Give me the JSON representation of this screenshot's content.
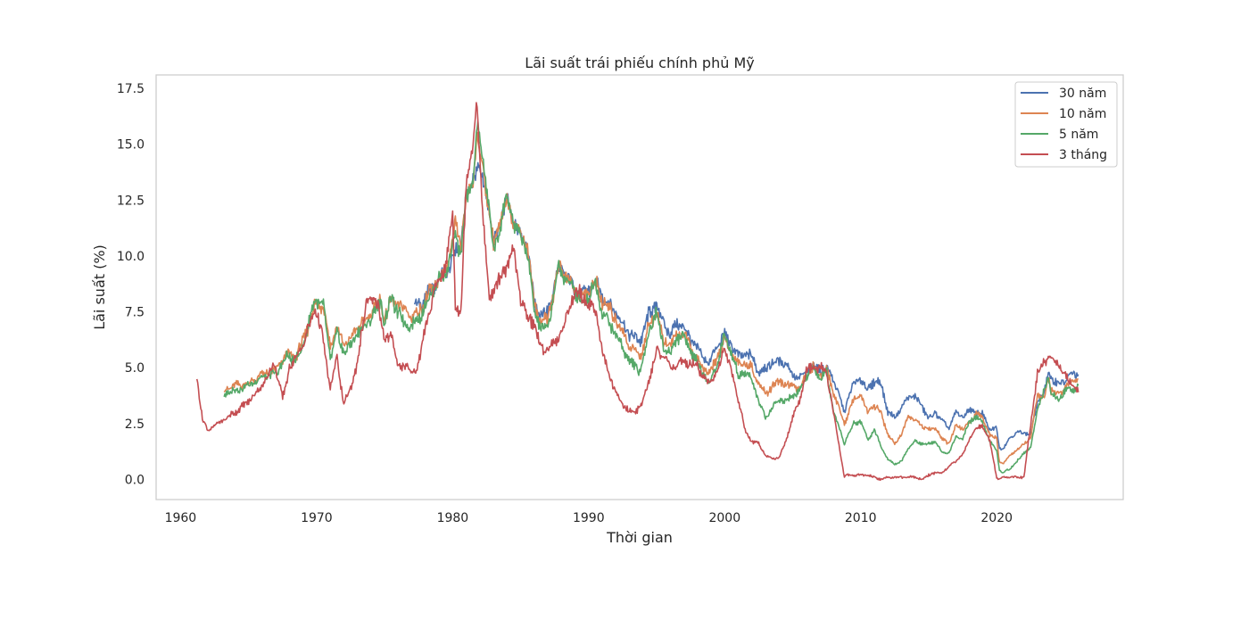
{
  "chart_data": {
    "type": "line",
    "title": "Lãi suất trái phiếu chính phủ Mỹ",
    "xlabel": "Thời gian",
    "ylabel": "Lãi suất (%)",
    "xlim": [
      1958.2,
      2029.3
    ],
    "ylim": [
      -0.9,
      18.1
    ],
    "xticks": [
      1960,
      1970,
      1980,
      1990,
      2000,
      2010,
      2020
    ],
    "yticks": [
      0.0,
      2.5,
      5.0,
      7.5,
      10.0,
      12.5,
      15.0,
      17.5
    ],
    "ytick_labels": [
      "0.0",
      "2.5",
      "5.0",
      "7.5",
      "10.0",
      "12.5",
      "15.0",
      "17.5"
    ],
    "grid": false,
    "legend_position": "top-right",
    "series": [
      {
        "name": "30 năm",
        "color": "#4c72b0",
        "x": [
          1977.2,
          1977.8,
          1978.5,
          1979.0,
          1979.8,
          1980.2,
          1980.6,
          1981.0,
          1981.5,
          1981.8,
          1982.2,
          1982.7,
          1983.0,
          1983.5,
          1984.0,
          1984.5,
          1985.0,
          1985.5,
          1986.0,
          1986.5,
          1987.0,
          1987.8,
          1988.5,
          1989.0,
          1989.5,
          1990.0,
          1990.5,
          1991.0,
          1992.0,
          1993.0,
          1993.8,
          1994.5,
          1995.0,
          1995.5,
          1996.0,
          1996.5,
          1997.0,
          1998.0,
          1998.8,
          1999.5,
          2000.0,
          2001.0,
          2001.5,
          2002.0,
          2002.5,
          2003.0,
          2003.5,
          2004.0,
          2004.5,
          2005.0,
          2005.5,
          2006.0,
          2006.5,
          2007.0,
          2007.5,
          2008.0,
          2008.8,
          2009.0,
          2009.5,
          2010.0,
          2010.5,
          2011.0,
          2011.5,
          2012.0,
          2012.5,
          2013.0,
          2013.5,
          2014.0,
          2014.5,
          2015.0,
          2015.5,
          2016.0,
          2016.5,
          2017.0,
          2017.5,
          2018.0,
          2018.5,
          2019.0,
          2019.5,
          2020.0,
          2020.2,
          2020.5,
          2021.0,
          2021.5,
          2022.0,
          2022.5,
          2023.0,
          2023.5,
          2023.8,
          2024.0,
          2024.5,
          2025.0,
          2025.5,
          2026.0
        ],
        "y": [
          7.8,
          7.9,
          8.5,
          9.0,
          9.5,
          10.2,
          10.5,
          12.5,
          13.5,
          14.0,
          13.5,
          12.0,
          10.5,
          11.5,
          12.5,
          11.5,
          11.0,
          10.5,
          8.0,
          7.3,
          7.5,
          9.5,
          9.0,
          8.5,
          8.2,
          8.5,
          8.8,
          8.2,
          7.5,
          6.5,
          6.2,
          7.5,
          7.8,
          7.0,
          6.5,
          7.0,
          6.8,
          5.8,
          5.2,
          6.0,
          6.5,
          5.5,
          5.6,
          5.5,
          4.8,
          5.0,
          5.2,
          5.3,
          5.2,
          4.7,
          4.5,
          4.8,
          5.1,
          4.9,
          5.0,
          4.5,
          3.0,
          3.5,
          4.3,
          4.5,
          4.0,
          4.4,
          4.3,
          3.0,
          2.8,
          3.2,
          3.7,
          3.7,
          3.3,
          2.7,
          3.0,
          2.6,
          2.3,
          3.0,
          2.8,
          3.1,
          3.0,
          2.9,
          2.2,
          2.3,
          1.4,
          1.4,
          1.9,
          2.1,
          2.1,
          2.0,
          3.5,
          3.9,
          4.8,
          4.5,
          4.3,
          4.4,
          4.7,
          4.7
        ]
      },
      {
        "name": "10 năm",
        "color": "#dd8452",
        "x": [
          1963.2,
          1964.0,
          1965.0,
          1966.0,
          1967.0,
          1967.8,
          1968.5,
          1969.0,
          1969.9,
          1970.5,
          1971.0,
          1971.5,
          1972.0,
          1972.5,
          1973.0,
          1973.5,
          1974.0,
          1974.7,
          1975.0,
          1975.5,
          1976.0,
          1976.5,
          1977.0,
          1977.5,
          1978.0,
          1978.5,
          1979.0,
          1979.5,
          1980.0,
          1980.2,
          1980.6,
          1981.0,
          1981.5,
          1981.8,
          1982.2,
          1982.7,
          1983.0,
          1983.5,
          1984.0,
          1984.5,
          1985.0,
          1985.5,
          1986.0,
          1986.5,
          1987.0,
          1987.8,
          1988.5,
          1989.0,
          1989.5,
          1990.0,
          1990.5,
          1991.0,
          1992.0,
          1993.0,
          1993.8,
          1994.5,
          1995.0,
          1995.5,
          1996.0,
          1996.5,
          1997.0,
          1998.0,
          1998.8,
          1999.5,
          2000.0,
          2001.0,
          2001.5,
          2002.0,
          2002.5,
          2003.0,
          2003.5,
          2004.0,
          2004.5,
          2005.0,
          2005.5,
          2006.0,
          2006.5,
          2007.0,
          2007.5,
          2008.0,
          2008.8,
          2009.0,
          2009.5,
          2010.0,
          2010.5,
          2011.0,
          2011.5,
          2012.0,
          2012.5,
          2013.0,
          2013.5,
          2014.0,
          2014.5,
          2015.0,
          2015.5,
          2016.0,
          2016.5,
          2017.0,
          2017.5,
          2018.0,
          2018.5,
          2019.0,
          2019.5,
          2020.0,
          2020.2,
          2020.5,
          2021.0,
          2021.5,
          2022.0,
          2022.5,
          2023.0,
          2023.5,
          2023.8,
          2024.0,
          2024.5,
          2025.0,
          2025.5,
          2026.0
        ],
        "y": [
          4.0,
          4.2,
          4.3,
          4.7,
          4.9,
          5.6,
          5.5,
          6.2,
          7.8,
          7.8,
          6.0,
          6.8,
          6.0,
          6.3,
          6.8,
          7.0,
          7.5,
          8.0,
          7.2,
          8.0,
          7.8,
          7.6,
          7.3,
          7.5,
          8.0,
          8.5,
          9.0,
          9.4,
          10.5,
          11.5,
          10.5,
          12.5,
          13.5,
          15.3,
          14.0,
          12.0,
          10.5,
          11.5,
          12.5,
          11.5,
          11.0,
          10.5,
          7.8,
          7.1,
          7.2,
          9.5,
          9.0,
          8.5,
          8.1,
          8.4,
          8.8,
          8.0,
          7.2,
          6.0,
          5.5,
          7.0,
          7.5,
          6.2,
          6.0,
          6.5,
          6.5,
          5.3,
          4.7,
          5.5,
          6.2,
          5.2,
          5.2,
          5.0,
          4.3,
          3.8,
          4.2,
          4.4,
          4.2,
          4.2,
          4.0,
          4.7,
          5.0,
          4.7,
          4.9,
          3.9,
          2.5,
          2.8,
          3.6,
          3.8,
          3.0,
          3.3,
          3.0,
          2.0,
          1.6,
          2.0,
          2.8,
          2.7,
          2.4,
          2.2,
          2.3,
          1.8,
          1.6,
          2.4,
          2.3,
          2.5,
          3.0,
          2.7,
          2.0,
          1.8,
          0.8,
          0.7,
          1.1,
          1.3,
          1.6,
          1.9,
          3.8,
          3.6,
          4.5,
          4.0,
          3.8,
          4.1,
          4.4,
          4.5
        ]
      },
      {
        "name": "5 năm",
        "color": "#55a868",
        "x": [
          1963.2,
          1964.0,
          1965.0,
          1966.0,
          1967.0,
          1967.8,
          1968.5,
          1969.0,
          1969.9,
          1970.5,
          1971.0,
          1971.5,
          1972.0,
          1972.5,
          1973.0,
          1973.5,
          1974.0,
          1974.7,
          1975.0,
          1975.5,
          1976.0,
          1976.5,
          1977.0,
          1977.5,
          1978.0,
          1978.5,
          1979.0,
          1979.5,
          1980.0,
          1980.2,
          1980.6,
          1981.0,
          1981.5,
          1981.8,
          1982.2,
          1982.7,
          1983.0,
          1983.5,
          1984.0,
          1984.5,
          1985.0,
          1985.5,
          1986.0,
          1986.5,
          1987.0,
          1987.8,
          1988.5,
          1989.0,
          1989.5,
          1990.0,
          1990.5,
          1991.0,
          1992.0,
          1993.0,
          1993.8,
          1994.5,
          1995.0,
          1995.5,
          1996.0,
          1996.5,
          1997.0,
          1998.0,
          1998.8,
          1999.5,
          2000.0,
          2001.0,
          2001.5,
          2002.0,
          2002.5,
          2003.0,
          2003.5,
          2004.0,
          2004.5,
          2005.0,
          2005.5,
          2006.0,
          2006.5,
          2007.0,
          2007.5,
          2008.0,
          2008.8,
          2009.0,
          2009.5,
          2010.0,
          2010.5,
          2011.0,
          2011.5,
          2012.0,
          2012.5,
          2013.0,
          2013.5,
          2014.0,
          2014.5,
          2015.0,
          2015.5,
          2016.0,
          2016.5,
          2017.0,
          2017.5,
          2018.0,
          2018.5,
          2019.0,
          2019.5,
          2020.0,
          2020.2,
          2020.5,
          2021.0,
          2021.5,
          2022.0,
          2022.5,
          2023.0,
          2023.5,
          2023.8,
          2024.0,
          2024.5,
          2025.0,
          2025.5,
          2026.0
        ],
        "y": [
          3.8,
          4.0,
          4.2,
          4.6,
          4.7,
          5.5,
          5.3,
          6.0,
          8.1,
          7.7,
          5.4,
          6.5,
          5.7,
          6.0,
          6.6,
          6.8,
          7.2,
          8.0,
          7.0,
          8.2,
          7.4,
          7.0,
          6.9,
          7.2,
          7.8,
          8.4,
          9.0,
          9.2,
          10.5,
          11.0,
          10.0,
          12.5,
          13.5,
          15.8,
          14.5,
          12.0,
          10.2,
          11.3,
          12.8,
          11.3,
          11.0,
          10.0,
          7.6,
          6.7,
          6.8,
          9.5,
          8.8,
          8.5,
          7.9,
          8.2,
          8.8,
          7.5,
          6.5,
          5.3,
          4.8,
          6.8,
          7.5,
          5.9,
          5.6,
          6.4,
          6.4,
          5.2,
          4.3,
          5.2,
          6.5,
          4.7,
          4.8,
          4.5,
          3.5,
          2.8,
          3.2,
          3.6,
          3.5,
          3.8,
          3.9,
          4.6,
          5.0,
          4.5,
          4.8,
          3.0,
          1.6,
          1.9,
          2.5,
          2.6,
          1.8,
          2.2,
          1.5,
          0.9,
          0.7,
          0.8,
          1.4,
          1.7,
          1.6,
          1.6,
          1.7,
          1.2,
          1.2,
          1.9,
          1.8,
          2.6,
          2.8,
          2.5,
          1.7,
          1.3,
          0.4,
          0.3,
          0.5,
          0.8,
          1.2,
          1.4,
          3.2,
          3.9,
          4.6,
          3.9,
          3.5,
          4.0,
          4.0,
          4.2
        ]
      },
      {
        "name": "3 tháng",
        "color": "#c44e52",
        "x": [
          1961.2,
          1961.6,
          1962.0,
          1962.5,
          1963.0,
          1964.0,
          1965.0,
          1966.0,
          1966.9,
          1967.5,
          1968.0,
          1969.0,
          1969.9,
          1970.5,
          1971.0,
          1971.5,
          1972.0,
          1972.5,
          1973.0,
          1973.7,
          1974.0,
          1974.5,
          1975.0,
          1975.5,
          1976.0,
          1976.5,
          1977.0,
          1977.5,
          1978.0,
          1978.5,
          1979.0,
          1979.5,
          1980.0,
          1980.2,
          1980.6,
          1981.0,
          1981.5,
          1981.8,
          1982.2,
          1982.7,
          1983.0,
          1983.5,
          1984.0,
          1984.5,
          1985.0,
          1985.5,
          1986.0,
          1986.5,
          1987.0,
          1987.8,
          1988.5,
          1989.0,
          1989.5,
          1990.0,
          1990.5,
          1991.0,
          1992.0,
          1993.0,
          1993.8,
          1994.5,
          1995.0,
          1995.5,
          1996.0,
          1996.5,
          1997.0,
          1998.0,
          1998.8,
          1999.5,
          2000.0,
          2001.0,
          2001.5,
          2002.0,
          2002.5,
          2003.0,
          2003.5,
          2004.0,
          2004.5,
          2005.0,
          2005.5,
          2006.0,
          2006.5,
          2007.0,
          2007.5,
          2008.0,
          2008.8,
          2009.0,
          2009.5,
          2010.0,
          2010.5,
          2011.0,
          2011.5,
          2012.0,
          2012.5,
          2013.0,
          2013.5,
          2014.0,
          2014.5,
          2015.0,
          2015.5,
          2016.0,
          2016.5,
          2017.0,
          2017.5,
          2018.0,
          2018.5,
          2019.0,
          2019.5,
          2020.0,
          2020.2,
          2020.5,
          2021.0,
          2021.5,
          2022.0,
          2022.5,
          2023.0,
          2023.5,
          2023.8,
          2024.0,
          2024.5,
          2025.0,
          2025.5,
          2026.0
        ],
        "y": [
          4.6,
          2.7,
          2.2,
          2.4,
          2.6,
          3.0,
          3.5,
          4.2,
          5.2,
          3.6,
          5.0,
          6.0,
          7.7,
          6.2,
          4.0,
          5.5,
          3.3,
          4.1,
          5.2,
          8.2,
          7.8,
          8.0,
          6.2,
          6.5,
          5.0,
          5.2,
          4.7,
          5.2,
          6.8,
          8.0,
          9.0,
          9.5,
          12.0,
          8.0,
          7.2,
          13.5,
          15.0,
          16.8,
          12.0,
          8.0,
          8.5,
          9.0,
          9.5,
          10.3,
          8.0,
          7.3,
          7.0,
          5.8,
          5.9,
          6.3,
          7.5,
          8.5,
          8.2,
          7.8,
          7.7,
          5.7,
          3.8,
          3.0,
          3.2,
          4.5,
          5.8,
          5.5,
          5.1,
          5.1,
          5.2,
          5.1,
          4.3,
          4.8,
          6.0,
          3.6,
          2.2,
          1.7,
          1.6,
          1.1,
          0.9,
          1.0,
          1.7,
          2.8,
          3.5,
          4.8,
          5.0,
          5.0,
          4.8,
          3.0,
          0.1,
          0.2,
          0.2,
          0.2,
          0.2,
          0.1,
          0.0,
          0.1,
          0.1,
          0.1,
          0.1,
          0.1,
          0.0,
          0.2,
          0.3,
          0.3,
          0.6,
          0.8,
          1.1,
          1.8,
          2.3,
          2.4,
          1.7,
          0.1,
          0.0,
          0.1,
          0.1,
          0.1,
          0.1,
          2.5,
          4.7,
          5.3,
          5.4,
          5.4,
          5.3,
          4.7,
          4.3,
          3.9
        ]
      }
    ]
  }
}
